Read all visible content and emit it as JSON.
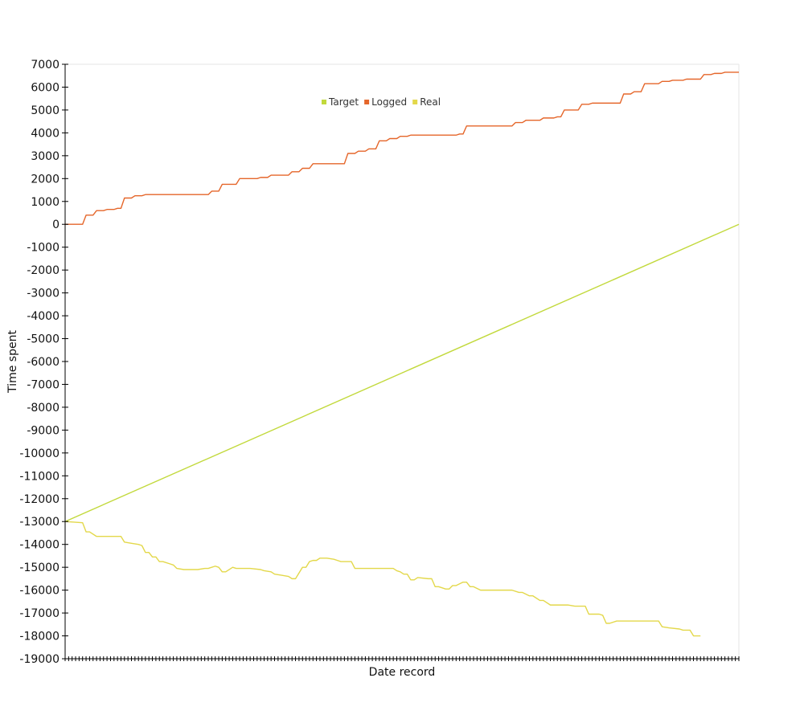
{
  "chart_data": {
    "type": "line",
    "title": "",
    "xlabel": "Date record",
    "ylabel": "Time spent",
    "ylim": [
      -19000,
      7000
    ],
    "yticks": [
      7000,
      6000,
      5000,
      4000,
      3000,
      2000,
      1000,
      0,
      -1000,
      -2000,
      -3000,
      -4000,
      -5000,
      -6000,
      -7000,
      -8000,
      -9000,
      -10000,
      -11000,
      -12000,
      -13000,
      -14000,
      -15000,
      -16000,
      -17000,
      -18000,
      -19000
    ],
    "x_tick_count": 193,
    "legend": {
      "position": "top-center"
    },
    "grid": false,
    "colors": {
      "Target": "#c2d93c",
      "Logged": "#e5662a",
      "Real": "#e3d84a"
    },
    "series": [
      {
        "name": "Target",
        "color": "#c2d93c",
        "points": [
          [
            0,
            -13000
          ],
          [
            193,
            0
          ]
        ]
      },
      {
        "name": "Logged",
        "color": "#e5662a",
        "points": [
          [
            0,
            0
          ],
          [
            5,
            0
          ],
          [
            6,
            400
          ],
          [
            8,
            400
          ],
          [
            9,
            600
          ],
          [
            11,
            600
          ],
          [
            12,
            650
          ],
          [
            14,
            650
          ],
          [
            15,
            700
          ],
          [
            16,
            700
          ],
          [
            17,
            1150
          ],
          [
            19,
            1150
          ],
          [
            20,
            1250
          ],
          [
            22,
            1250
          ],
          [
            23,
            1300
          ],
          [
            41,
            1300
          ],
          [
            42,
            1450
          ],
          [
            44,
            1450
          ],
          [
            45,
            1750
          ],
          [
            49,
            1750
          ],
          [
            50,
            2000
          ],
          [
            55,
            2000
          ],
          [
            56,
            2050
          ],
          [
            58,
            2050
          ],
          [
            59,
            2150
          ],
          [
            64,
            2150
          ],
          [
            65,
            2300
          ],
          [
            67,
            2300
          ],
          [
            68,
            2450
          ],
          [
            70,
            2450
          ],
          [
            71,
            2650
          ],
          [
            80,
            2650
          ],
          [
            81,
            3100
          ],
          [
            83,
            3100
          ],
          [
            84,
            3200
          ],
          [
            86,
            3200
          ],
          [
            87,
            3300
          ],
          [
            89,
            3300
          ],
          [
            90,
            3650
          ],
          [
            92,
            3650
          ],
          [
            93,
            3750
          ],
          [
            95,
            3750
          ],
          [
            96,
            3850
          ],
          [
            98,
            3850
          ],
          [
            99,
            3900
          ],
          [
            112,
            3900
          ],
          [
            113,
            3950
          ],
          [
            114,
            3950
          ],
          [
            115,
            4300
          ],
          [
            128,
            4300
          ],
          [
            129,
            4450
          ],
          [
            131,
            4450
          ],
          [
            132,
            4550
          ],
          [
            136,
            4550
          ],
          [
            137,
            4650
          ],
          [
            140,
            4650
          ],
          [
            141,
            4700
          ],
          [
            142,
            4700
          ],
          [
            143,
            5000
          ],
          [
            147,
            5000
          ],
          [
            148,
            5250
          ],
          [
            150,
            5250
          ],
          [
            151,
            5300
          ],
          [
            159,
            5300
          ],
          [
            160,
            5700
          ],
          [
            162,
            5700
          ],
          [
            163,
            5800
          ],
          [
            165,
            5800
          ],
          [
            166,
            6150
          ],
          [
            170,
            6150
          ],
          [
            171,
            6250
          ],
          [
            173,
            6250
          ],
          [
            174,
            6300
          ],
          [
            177,
            6300
          ],
          [
            178,
            6350
          ],
          [
            182,
            6350
          ],
          [
            183,
            6550
          ],
          [
            185,
            6550
          ],
          [
            186,
            6600
          ],
          [
            188,
            6600
          ],
          [
            189,
            6650
          ],
          [
            193,
            6650
          ]
        ]
      },
      {
        "name": "Real",
        "color": "#e3d84a",
        "points": [
          [
            0,
            -13000
          ],
          [
            5,
            -13050
          ],
          [
            6,
            -13450
          ],
          [
            7,
            -13450
          ],
          [
            9,
            -13650
          ],
          [
            16,
            -13650
          ],
          [
            17,
            -13900
          ],
          [
            19,
            -13950
          ],
          [
            21,
            -14000
          ],
          [
            22,
            -14050
          ],
          [
            23,
            -14350
          ],
          [
            24,
            -14350
          ],
          [
            25,
            -14550
          ],
          [
            26,
            -14550
          ],
          [
            27,
            -14750
          ],
          [
            28,
            -14750
          ],
          [
            30,
            -14850
          ],
          [
            31,
            -14900
          ],
          [
            32,
            -15050
          ],
          [
            34,
            -15100
          ],
          [
            38,
            -15100
          ],
          [
            40,
            -15050
          ],
          [
            41,
            -15050
          ],
          [
            43,
            -14950
          ],
          [
            44,
            -15000
          ],
          [
            45,
            -15200
          ],
          [
            46,
            -15200
          ],
          [
            48,
            -15000
          ],
          [
            49,
            -15050
          ],
          [
            53,
            -15050
          ],
          [
            56,
            -15100
          ],
          [
            57,
            -15150
          ],
          [
            59,
            -15200
          ],
          [
            60,
            -15300
          ],
          [
            62,
            -15350
          ],
          [
            64,
            -15400
          ],
          [
            65,
            -15500
          ],
          [
            66,
            -15500
          ],
          [
            68,
            -15000
          ],
          [
            69,
            -15000
          ],
          [
            70,
            -14750
          ],
          [
            71,
            -14700
          ],
          [
            72,
            -14700
          ],
          [
            73,
            -14600
          ],
          [
            75,
            -14600
          ],
          [
            77,
            -14650
          ],
          [
            78,
            -14700
          ],
          [
            79,
            -14750
          ],
          [
            82,
            -14750
          ],
          [
            83,
            -15050
          ],
          [
            94,
            -15050
          ],
          [
            95,
            -15150
          ],
          [
            96,
            -15200
          ],
          [
            97,
            -15300
          ],
          [
            98,
            -15300
          ],
          [
            99,
            -15550
          ],
          [
            100,
            -15550
          ],
          [
            101,
            -15450
          ],
          [
            104,
            -15500
          ],
          [
            105,
            -15500
          ],
          [
            106,
            -15850
          ],
          [
            107,
            -15850
          ],
          [
            109,
            -15950
          ],
          [
            110,
            -15950
          ],
          [
            111,
            -15800
          ],
          [
            112,
            -15800
          ],
          [
            114,
            -15650
          ],
          [
            115,
            -15650
          ],
          [
            116,
            -15850
          ],
          [
            117,
            -15850
          ],
          [
            119,
            -16000
          ],
          [
            128,
            -16000
          ],
          [
            130,
            -16100
          ],
          [
            131,
            -16100
          ],
          [
            133,
            -16250
          ],
          [
            134,
            -16250
          ],
          [
            136,
            -16450
          ],
          [
            137,
            -16450
          ],
          [
            139,
            -16650
          ],
          [
            144,
            -16650
          ],
          [
            146,
            -16700
          ],
          [
            149,
            -16700
          ],
          [
            150,
            -17050
          ],
          [
            153,
            -17050
          ],
          [
            154,
            -17100
          ],
          [
            155,
            -17450
          ],
          [
            156,
            -17450
          ],
          [
            158,
            -17350
          ],
          [
            170,
            -17350
          ],
          [
            171,
            -17600
          ],
          [
            173,
            -17650
          ],
          [
            176,
            -17700
          ],
          [
            177,
            -17750
          ],
          [
            179,
            -17750
          ],
          [
            180,
            -18000
          ],
          [
            182,
            -18000
          ]
        ]
      }
    ]
  }
}
